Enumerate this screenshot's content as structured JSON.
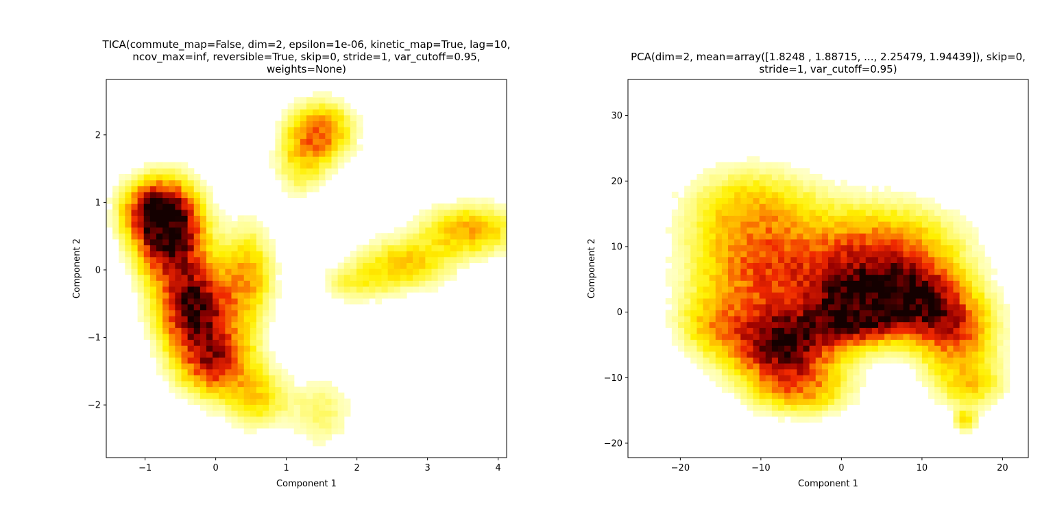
{
  "chart_data": [
    {
      "type": "heatmap",
      "title_lines": [
        "TICA(commute_map=False, dim=2, epsilon=1e-06, kinetic_map=True, lag=10,",
        "ncov_max=inf, reversible=True, skip=0, stride=1, var_cutoff=0.95,",
        "weights=None)"
      ],
      "xlabel": "Component 1",
      "ylabel": "Component 2",
      "xlim": [
        -1.55,
        4.12
      ],
      "ylim": [
        -2.78,
        2.82
      ],
      "xticks": [
        -1,
        0,
        1,
        2,
        3,
        4
      ],
      "yticks": [
        -2,
        -1,
        0,
        1,
        2
      ],
      "xtick_labels": [
        "−1",
        "0",
        "1",
        "2",
        "3",
        "4"
      ],
      "ytick_labels": [
        "−2",
        "−1",
        "0",
        "1",
        "2"
      ],
      "colormap": "hot_r",
      "grid": false,
      "density_clusters": [
        {
          "x": -0.65,
          "y": 0.55,
          "sx": 0.32,
          "sy": 0.45,
          "weight": 1.0
        },
        {
          "x": -0.3,
          "y": -0.55,
          "sx": 0.35,
          "sy": 0.45,
          "weight": 0.9
        },
        {
          "x": 0.0,
          "y": -1.35,
          "sx": 0.35,
          "sy": 0.35,
          "weight": 0.65
        },
        {
          "x": -0.9,
          "y": 0.9,
          "sx": 0.3,
          "sy": 0.3,
          "weight": 0.55
        },
        {
          "x": 0.45,
          "y": -0.1,
          "sx": 0.25,
          "sy": 0.5,
          "weight": 0.4
        },
        {
          "x": 0.6,
          "y": -1.9,
          "sx": 0.3,
          "sy": 0.3,
          "weight": 0.3
        },
        {
          "x": 1.5,
          "y": -2.1,
          "sx": 0.3,
          "sy": 0.35,
          "weight": 0.18
        },
        {
          "x": 1.5,
          "y": 2.05,
          "sx": 0.3,
          "sy": 0.3,
          "weight": 0.5
        },
        {
          "x": 1.2,
          "y": 1.6,
          "sx": 0.25,
          "sy": 0.35,
          "weight": 0.25
        },
        {
          "x": 3.6,
          "y": 0.6,
          "sx": 0.45,
          "sy": 0.25,
          "weight": 0.42
        },
        {
          "x": 2.7,
          "y": 0.1,
          "sx": 0.45,
          "sy": 0.25,
          "weight": 0.35
        },
        {
          "x": 2.0,
          "y": -0.2,
          "sx": 0.35,
          "sy": 0.2,
          "weight": 0.2
        }
      ]
    },
    {
      "type": "heatmap",
      "title_lines": [
        "PCA(dim=2, mean=array([1.8248 , 1.88715, ..., 2.25479, 1.94439]), skip=0,",
        "stride=1, var_cutoff=0.95)"
      ],
      "xlabel": "Component 1",
      "ylabel": "Component 2",
      "xlim": [
        -26.5,
        23.2
      ],
      "ylim": [
        -22.2,
        35.5
      ],
      "xticks": [
        -20,
        -10,
        0,
        10,
        20
      ],
      "yticks": [
        -20,
        -10,
        0,
        10,
        20,
        30
      ],
      "xtick_labels": [
        "−20",
        "−10",
        "0",
        "10",
        "20"
      ],
      "ytick_labels": [
        "−20",
        "−10",
        "0",
        "10",
        "20",
        "30"
      ],
      "colormap": "hot_r",
      "grid": false,
      "density_clusters": [
        {
          "x": 2,
          "y": 0,
          "sx": 3.5,
          "sy": 3,
          "weight": 0.95
        },
        {
          "x": -7,
          "y": -5,
          "sx": 4.5,
          "sy": 4,
          "weight": 0.9
        },
        {
          "x": 9,
          "y": 2,
          "sx": 4,
          "sy": 3.5,
          "weight": 0.7
        },
        {
          "x": 14,
          "y": -3,
          "sx": 3.5,
          "sy": 4,
          "weight": 0.55
        },
        {
          "x": -3,
          "y": 6,
          "sx": 8,
          "sy": 5,
          "weight": 0.45
        },
        {
          "x": 6,
          "y": 9,
          "sx": 6,
          "sy": 5,
          "weight": 0.42
        },
        {
          "x": -12,
          "y": 8,
          "sx": 5,
          "sy": 8,
          "weight": 0.28
        },
        {
          "x": -16,
          "y": -2,
          "sx": 3,
          "sy": 3,
          "weight": 0.25
        },
        {
          "x": -5,
          "y": -12,
          "sx": 4,
          "sy": 2.5,
          "weight": 0.35
        },
        {
          "x": 16,
          "y": -11,
          "sx": 3,
          "sy": 2.5,
          "weight": 0.3
        },
        {
          "x": 15.5,
          "y": -16.5,
          "sx": 1,
          "sy": 1.2,
          "weight": 0.3
        },
        {
          "x": -10,
          "y": 16,
          "sx": 6,
          "sy": 4,
          "weight": 0.22
        }
      ]
    }
  ]
}
